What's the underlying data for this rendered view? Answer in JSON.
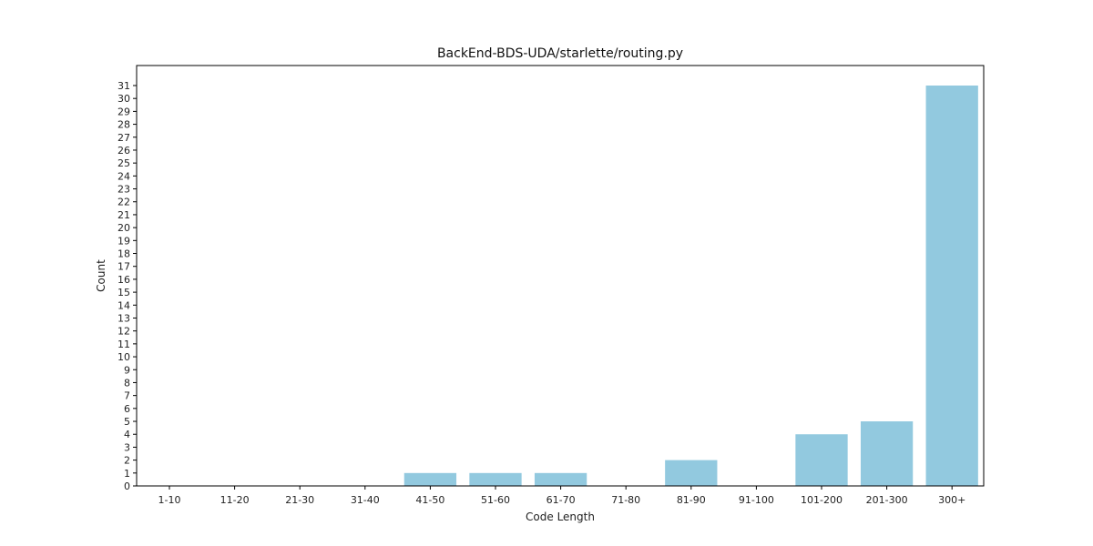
{
  "chart_data": {
    "type": "bar",
    "title": "BackEnd-BDS-UDA/starlette/routing.py",
    "xlabel": "Code Length",
    "ylabel": "Count",
    "categories": [
      "1-10",
      "11-20",
      "21-30",
      "31-40",
      "41-50",
      "51-60",
      "61-70",
      "71-80",
      "81-90",
      "91-100",
      "101-200",
      "201-300",
      "300+"
    ],
    "values": [
      0,
      0,
      0,
      0,
      1,
      1,
      1,
      0,
      2,
      0,
      4,
      5,
      31
    ],
    "ylim": [
      0,
      32.55
    ],
    "yticks": [
      0,
      1,
      2,
      3,
      4,
      5,
      6,
      7,
      8,
      9,
      10,
      11,
      12,
      13,
      14,
      15,
      16,
      17,
      18,
      19,
      20,
      21,
      22,
      23,
      24,
      25,
      26,
      27,
      28,
      29,
      30,
      31
    ],
    "bar_color": "#92c9df",
    "grid": false,
    "legend": "none"
  }
}
